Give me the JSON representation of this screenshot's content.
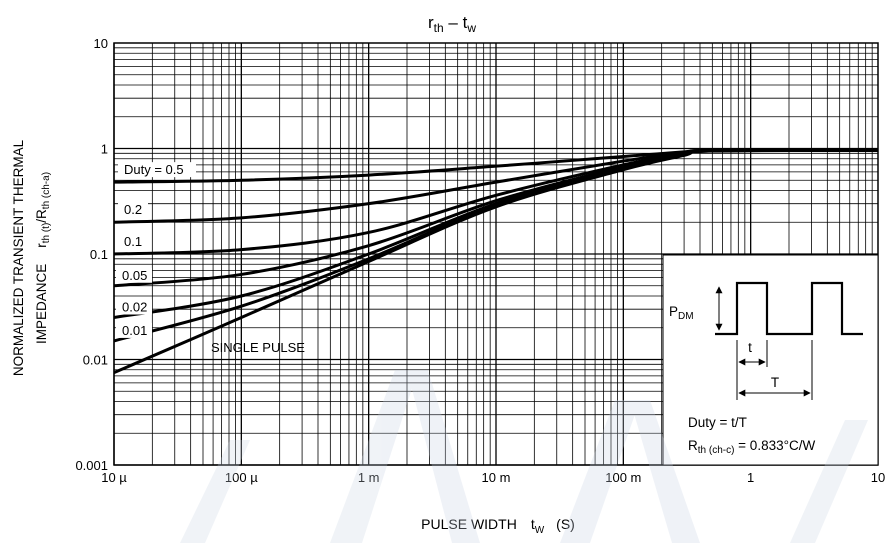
{
  "chart_data": {
    "type": "line",
    "title_main": "r",
    "title_sub1": "th",
    "title_sep": " – t",
    "title_sub2": "w",
    "ylabel_line1": "NORMALIZED TRANSIENT THERMAL",
    "ylabel_line2": "IMPEDANCE",
    "ylabel_r": "r",
    "ylabel_sub1": "th (t)",
    "ylabel_mid": "/R",
    "ylabel_sub2": "th (ch-a)",
    "xlabel_main": "PULSE WIDTH",
    "xlabel_t": "t",
    "xlabel_sub": "W",
    "xlabel_unit": "(S)",
    "x_scale": "log",
    "y_scale": "log",
    "xlim": [
      1e-05,
      10
    ],
    "ylim": [
      0.001,
      10
    ],
    "x_ticks": [
      {
        "value": 1e-05,
        "label": "10 µ"
      },
      {
        "value": 0.0001,
        "label": "100 µ"
      },
      {
        "value": 0.001,
        "label": "1 m"
      },
      {
        "value": 0.01,
        "label": "10 m"
      },
      {
        "value": 0.1,
        "label": "100 m"
      },
      {
        "value": 1,
        "label": "1"
      },
      {
        "value": 10,
        "label": "10"
      }
    ],
    "y_ticks": [
      {
        "value": 0.001,
        "label": "0.001"
      },
      {
        "value": 0.01,
        "label": "0.01"
      },
      {
        "value": 0.1,
        "label": "0.1"
      },
      {
        "value": 1,
        "label": "1"
      },
      {
        "value": 10,
        "label": "10"
      }
    ],
    "grid": true,
    "series": [
      {
        "name": "Duty = 0.5",
        "x": [
          1e-05,
          0.0001,
          0.001,
          0.01,
          0.1,
          0.3,
          0.5,
          10
        ],
        "y": [
          0.48,
          0.5,
          0.56,
          0.68,
          0.84,
          0.93,
          0.96,
          0.96
        ]
      },
      {
        "name": "0.2",
        "x": [
          1e-05,
          0.0001,
          0.001,
          0.01,
          0.1,
          0.3,
          0.5,
          10
        ],
        "y": [
          0.2,
          0.22,
          0.3,
          0.48,
          0.76,
          0.92,
          0.96,
          0.96
        ]
      },
      {
        "name": "0.1",
        "x": [
          1e-05,
          0.0001,
          0.001,
          0.01,
          0.1,
          0.3,
          0.5,
          10
        ],
        "y": [
          0.1,
          0.11,
          0.16,
          0.36,
          0.7,
          0.9,
          0.95,
          0.96
        ]
      },
      {
        "name": "0.05",
        "x": [
          1e-05,
          0.0001,
          0.001,
          0.01,
          0.1,
          0.3,
          0.5,
          10
        ],
        "y": [
          0.05,
          0.064,
          0.12,
          0.32,
          0.67,
          0.88,
          0.95,
          0.96
        ]
      },
      {
        "name": "0.02",
        "x": [
          1e-05,
          0.0001,
          0.001,
          0.01,
          0.1,
          0.3,
          0.5,
          10
        ],
        "y": [
          0.025,
          0.04,
          0.1,
          0.3,
          0.65,
          0.87,
          0.95,
          0.96
        ]
      },
      {
        "name": "0.01",
        "x": [
          1e-05,
          0.0001,
          0.001,
          0.01,
          0.1,
          0.3,
          0.5,
          10
        ],
        "y": [
          0.015,
          0.032,
          0.09,
          0.29,
          0.64,
          0.87,
          0.95,
          0.96
        ]
      },
      {
        "name": "SINGLE PULSE",
        "x": [
          1e-05,
          0.0001,
          0.001,
          0.01,
          0.1,
          0.3,
          0.5,
          10
        ],
        "y": [
          0.0075,
          0.025,
          0.085,
          0.28,
          0.63,
          0.86,
          0.95,
          0.96
        ]
      }
    ],
    "inset": {
      "p_label": "P",
      "p_sub": "DM",
      "t_label": "t",
      "T_label": "T",
      "duty_text": "Duty = t/T",
      "rth_r": "R",
      "rth_sub": "th (ch-c)",
      "rth_value": " = 0.833°C/W"
    }
  }
}
